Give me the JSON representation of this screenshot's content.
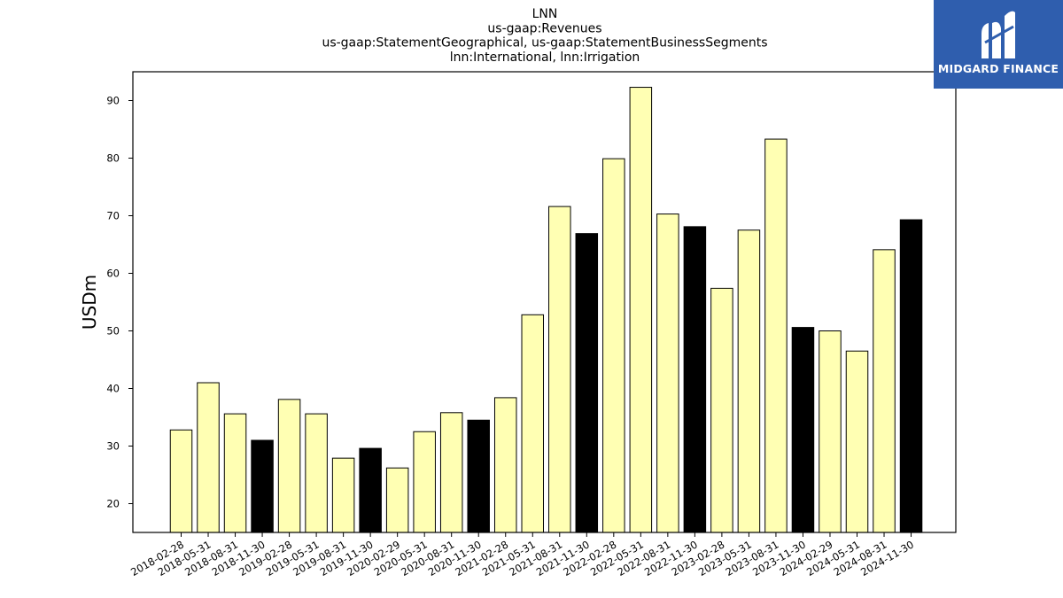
{
  "chart_data": {
    "type": "bar",
    "title_lines": [
      "LNN",
      "us-gaap:Revenues",
      "us-gaap:StatementGeographical, us-gaap:StatementBusinessSegments",
      "lnn:International, lnn:Irrigation"
    ],
    "ylabel": "USDm",
    "xlabel": "",
    "ylim": [
      15,
      95
    ],
    "yticks": [
      20,
      30,
      40,
      50,
      60,
      70,
      80,
      90
    ],
    "categories": [
      "2018-02-28",
      "2018-05-31",
      "2018-08-31",
      "2018-11-30",
      "2019-02-28",
      "2019-05-31",
      "2019-08-31",
      "2019-11-30",
      "2020-02-29",
      "2020-05-31",
      "2020-08-31",
      "2020-11-30",
      "2021-02-28",
      "2021-05-31",
      "2021-08-31",
      "2021-11-30",
      "2022-02-28",
      "2022-05-31",
      "2022-08-31",
      "2022-11-30",
      "2023-02-28",
      "2023-05-31",
      "2023-08-31",
      "2023-11-30",
      "2024-02-29",
      "2024-05-31",
      "2024-08-31",
      "2024-11-30"
    ],
    "values": [
      32.8,
      41.0,
      35.6,
      31.0,
      38.1,
      35.6,
      27.9,
      29.6,
      26.2,
      32.5,
      35.8,
      34.5,
      38.4,
      52.8,
      71.6,
      66.9,
      79.9,
      92.3,
      70.3,
      68.1,
      57.4,
      67.5,
      83.3,
      50.6,
      50.0,
      46.5,
      64.1,
      69.3
    ],
    "highlight_dates": [
      "2018-11-30",
      "2019-11-30",
      "2020-11-30",
      "2021-11-30",
      "2022-11-30",
      "2023-11-30",
      "2024-11-30"
    ],
    "colors": {
      "bar": "#ffffb3",
      "highlight": "#000000",
      "edge": "#000000"
    },
    "grid": false,
    "legend": "none"
  },
  "logo": {
    "brand_text": "MIDGARD FINANCE",
    "bg_color": "#2f5eae",
    "icon": "midgard-m-icon"
  }
}
